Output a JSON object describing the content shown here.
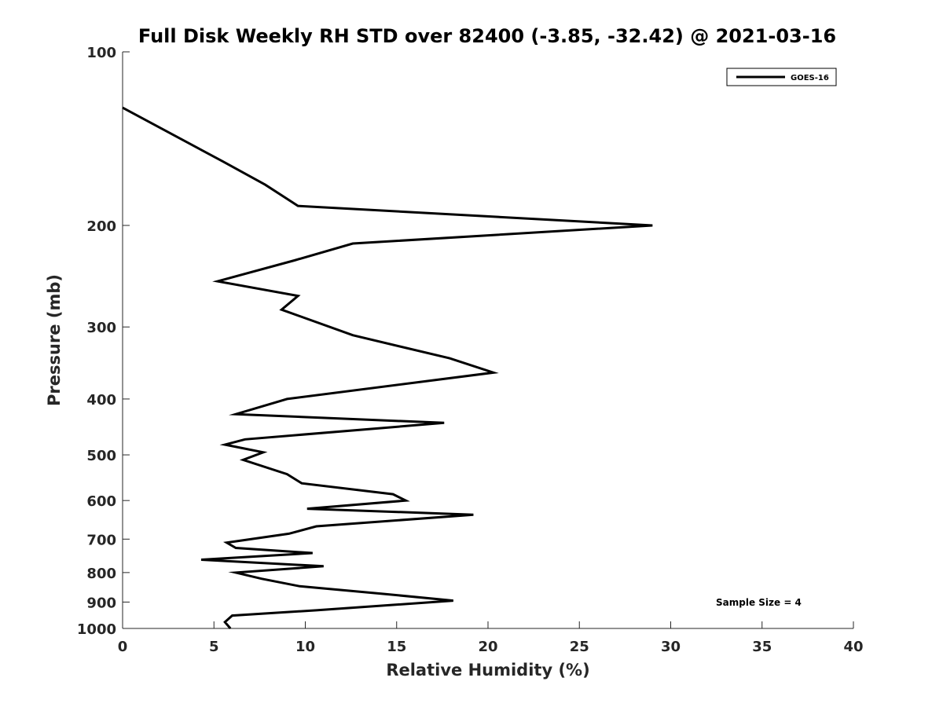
{
  "chart_data": {
    "type": "line",
    "title": "Full Disk Weekly RH STD over 82400 (-3.85, -32.42) @ 2021-03-16",
    "xlabel": "Relative Humidity (%)",
    "ylabel": "Pressure (mb)",
    "xlim": [
      0,
      40
    ],
    "ylim": [
      1000,
      100
    ],
    "y_scale": "log",
    "x_ticks": [
      "0",
      "5",
      "10",
      "15",
      "20",
      "25",
      "30",
      "35",
      "40"
    ],
    "y_ticks": [
      "100",
      "200",
      "300",
      "400",
      "500",
      "600",
      "700",
      "800",
      "900",
      "1000"
    ],
    "grid": false,
    "legend": {
      "position": "top-right",
      "entries": [
        "GOES-16"
      ]
    },
    "annotation": "Sample Size = 4",
    "series": [
      {
        "name": "GOES-16",
        "color": "#000000",
        "points": [
          [
            0.0,
            125
          ],
          [
            5.5,
            155
          ],
          [
            7.8,
            170
          ],
          [
            9.6,
            185
          ],
          [
            29.0,
            200
          ],
          [
            12.6,
            215
          ],
          [
            9.4,
            230
          ],
          [
            5.2,
            250
          ],
          [
            9.6,
            265
          ],
          [
            8.7,
            280
          ],
          [
            12.6,
            310
          ],
          [
            17.9,
            340
          ],
          [
            20.3,
            360
          ],
          [
            9.0,
            400
          ],
          [
            6.2,
            425
          ],
          [
            17.6,
            440
          ],
          [
            6.7,
            470
          ],
          [
            5.6,
            480
          ],
          [
            7.7,
            495
          ],
          [
            6.6,
            510
          ],
          [
            9.0,
            540
          ],
          [
            9.8,
            560
          ],
          [
            14.8,
            585
          ],
          [
            15.5,
            600
          ],
          [
            10.1,
            620
          ],
          [
            19.2,
            635
          ],
          [
            10.6,
            665
          ],
          [
            9.1,
            685
          ],
          [
            5.7,
            710
          ],
          [
            6.2,
            725
          ],
          [
            10.4,
            740
          ],
          [
            4.3,
            760
          ],
          [
            11.0,
            780
          ],
          [
            6.2,
            800
          ],
          [
            7.6,
            820
          ],
          [
            9.7,
            845
          ],
          [
            14.1,
            870
          ],
          [
            18.1,
            895
          ],
          [
            10.6,
            930
          ],
          [
            6.0,
            950
          ],
          [
            5.6,
            975
          ],
          [
            5.9,
            1000
          ]
        ]
      }
    ]
  }
}
